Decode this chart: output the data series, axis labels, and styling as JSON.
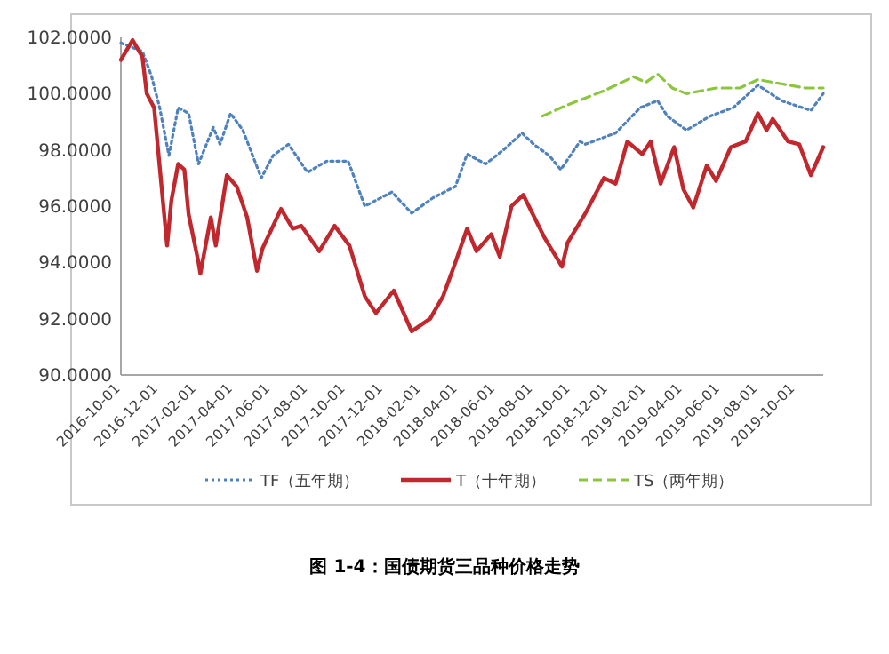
{
  "chart_data": {
    "type": "line",
    "title": "图 1-4：国债期货三品种价格走势",
    "xlim": [
      "2016-10-01",
      "2019-11-15"
    ],
    "xticks": [
      "2016-10-01",
      "2016-12-01",
      "2017-02-01",
      "2017-04-01",
      "2017-06-01",
      "2017-08-01",
      "2017-10-01",
      "2017-12-01",
      "2018-02-01",
      "2018-04-01",
      "2018-06-01",
      "2018-08-01",
      "2018-10-01",
      "2018-12-01",
      "2019-02-01",
      "2019-04-01",
      "2019-06-01",
      "2019-08-01",
      "2019-10-01"
    ],
    "ylim": [
      90,
      102
    ],
    "yticks": [
      {
        "value": 90,
        "label": "90.0000"
      },
      {
        "value": 92,
        "label": "92.0000"
      },
      {
        "value": 94,
        "label": "94.0000"
      },
      {
        "value": 96,
        "label": "96.0000"
      },
      {
        "value": 98,
        "label": "98.0000"
      },
      {
        "value": 100,
        "label": "100.0000"
      },
      {
        "value": 102,
        "label": "102.0000"
      }
    ],
    "grid": false,
    "legend": "bottom",
    "marker": "none",
    "series": [
      {
        "name": "TF（五年期）",
        "color": "#4f81bd",
        "line_style": "dotted",
        "x": [
          "2016-10-01",
          "2016-11-05",
          "2016-11-20",
          "2016-12-03",
          "2016-12-18",
          "2017-01-02",
          "2017-01-19",
          "2017-02-04",
          "2017-02-28",
          "2017-03-11",
          "2017-03-28",
          "2017-04-17",
          "2017-05-17",
          "2017-06-05",
          "2017-06-30",
          "2017-07-31",
          "2017-08-31",
          "2017-10-05",
          "2017-11-01",
          "2017-12-15",
          "2018-01-16",
          "2018-02-20",
          "2018-03-28",
          "2018-04-16",
          "2018-05-16",
          "2018-06-14",
          "2018-07-14",
          "2018-08-02",
          "2018-08-27",
          "2018-09-15",
          "2018-10-16",
          "2018-10-25",
          "2018-12-13",
          "2019-01-22",
          "2019-02-19",
          "2019-03-07",
          "2019-04-07",
          "2019-05-15",
          "2019-06-22",
          "2019-08-01",
          "2019-09-08",
          "2019-10-26",
          "2019-11-15"
        ],
        "values": [
          101.8,
          101.5,
          100.6,
          99.5,
          97.8,
          99.5,
          99.3,
          97.5,
          98.8,
          98.2,
          99.3,
          98.7,
          97.0,
          97.8,
          98.2,
          97.2,
          97.6,
          97.6,
          96.0,
          96.5,
          95.75,
          96.3,
          96.7,
          97.85,
          97.5,
          98.0,
          98.6,
          98.2,
          97.8,
          97.3,
          98.3,
          98.2,
          98.6,
          99.5,
          99.75,
          99.2,
          98.7,
          99.2,
          99.5,
          100.3,
          99.75,
          99.4,
          100.0
        ]
      },
      {
        "name": "T（十年期）",
        "color": "#c0282d",
        "line_style": "solid",
        "x": [
          "2016-10-01",
          "2016-10-20",
          "2016-11-05",
          "2016-11-12",
          "2016-11-24",
          "2016-12-15",
          "2016-12-22",
          "2017-01-02",
          "2017-01-12",
          "2017-01-19",
          "2017-02-04",
          "2017-02-07",
          "2017-02-24",
          "2017-03-04",
          "2017-03-22",
          "2017-04-07",
          "2017-04-24",
          "2017-05-10",
          "2017-05-19",
          "2017-06-18",
          "2017-07-07",
          "2017-07-21",
          "2017-08-19",
          "2017-09-13",
          "2017-10-07",
          "2017-11-01",
          "2017-11-19",
          "2017-12-18",
          "2018-01-16",
          "2018-02-15",
          "2018-03-08",
          "2018-03-28",
          "2018-04-16",
          "2018-05-01",
          "2018-05-25",
          "2018-06-08",
          "2018-06-27",
          "2018-07-16",
          "2018-08-19",
          "2018-09-17",
          "2018-09-26",
          "2018-10-25",
          "2018-11-24",
          "2018-12-13",
          "2019-01-01",
          "2019-01-25",
          "2019-02-08",
          "2019-02-24",
          "2019-03-18",
          "2019-04-02",
          "2019-04-18",
          "2019-05-10",
          "2019-05-25",
          "2019-06-18",
          "2019-07-12",
          "2019-08-01",
          "2019-08-15",
          "2019-08-25",
          "2019-09-19",
          "2019-10-07",
          "2019-10-26",
          "2019-11-15"
        ],
        "values": [
          101.2,
          101.9,
          101.3,
          100.0,
          99.5,
          94.6,
          96.2,
          97.5,
          97.3,
          95.7,
          94.0,
          93.6,
          95.6,
          94.6,
          97.1,
          96.7,
          95.6,
          93.7,
          94.5,
          95.9,
          95.2,
          95.3,
          94.4,
          95.3,
          94.6,
          92.8,
          92.2,
          93.0,
          91.55,
          92.0,
          92.8,
          94.0,
          95.2,
          94.4,
          95.0,
          94.2,
          96.0,
          96.4,
          94.9,
          93.85,
          94.7,
          95.75,
          97.0,
          96.8,
          98.3,
          97.85,
          98.3,
          96.8,
          98.1,
          96.6,
          95.95,
          97.45,
          96.9,
          98.1,
          98.3,
          99.3,
          98.7,
          99.1,
          98.3,
          98.2,
          97.1,
          98.1
        ]
      },
      {
        "name": "TS（两年期）",
        "color": "#8cc63f",
        "line_style": "dashed",
        "x": [
          "2018-08-16",
          "2018-09-26",
          "2018-11-24",
          "2019-01-11",
          "2019-01-31",
          "2019-02-19",
          "2019-03-15",
          "2019-04-07",
          "2019-05-25",
          "2019-07-03",
          "2019-08-01",
          "2019-09-08",
          "2019-10-17",
          "2019-11-15"
        ],
        "values": [
          99.2,
          99.6,
          100.1,
          100.6,
          100.4,
          100.7,
          100.2,
          100.0,
          100.2,
          100.2,
          100.5,
          100.35,
          100.2,
          100.2
        ]
      }
    ]
  }
}
